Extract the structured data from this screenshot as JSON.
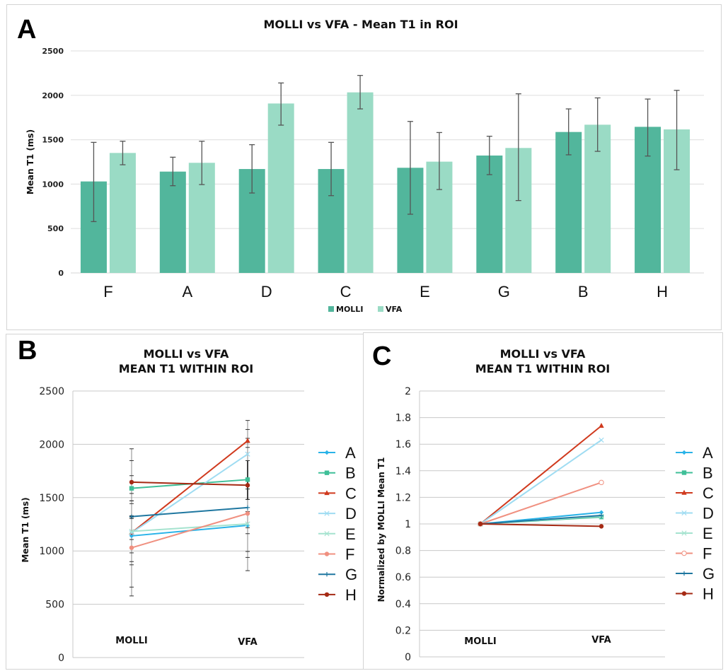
{
  "chart_data": [
    {
      "panel": "A",
      "type": "bar",
      "title": "MOLLI vs VFA - Mean T1 in ROI",
      "xlabel": "",
      "ylabel": "Mean T1 (ms)",
      "ylim": [
        0,
        2500
      ],
      "yticks": [
        0,
        500,
        1000,
        1500,
        2000,
        2500
      ],
      "grid": true,
      "legend": "bottom",
      "categories": [
        "F",
        "A",
        "D",
        "C",
        "E",
        "G",
        "B",
        "H"
      ],
      "series": [
        {
          "name": "MOLLI",
          "color": "#52b69c",
          "values": [
            1030,
            1141,
            1170,
            1170,
            1184,
            1322,
            1587,
            1645
          ],
          "error_low": [
            578,
            982,
            900,
            870,
            661,
            1107,
            1330,
            1316
          ],
          "error_high": [
            1470,
            1303,
            1444,
            1470,
            1706,
            1539,
            1847,
            1958
          ]
        },
        {
          "name": "VFA",
          "color": "#9adbc5",
          "values": [
            1351,
            1240,
            1908,
            2033,
            1253,
            1407,
            1669,
            1616
          ],
          "error_low": [
            1218,
            995,
            1664,
            1847,
            939,
            815,
            1369,
            1162
          ],
          "error_high": [
            1483,
            1483,
            2139,
            2224,
            1581,
            2017,
            1971,
            2056
          ]
        }
      ]
    },
    {
      "panel": "B",
      "type": "line",
      "title": [
        "MOLLI vs VFA",
        "MEAN T1 WITHIN ROI"
      ],
      "xlabel": "",
      "ylabel": "Mean T1 (ms)",
      "ylim": [
        0,
        2500
      ],
      "yticks": [
        0,
        500,
        1000,
        1500,
        2000,
        2500
      ],
      "grid": true,
      "legend": "right",
      "x": [
        "MOLLI",
        "VFA"
      ],
      "series": [
        {
          "name": "A",
          "color": "#29b3e8",
          "marker": "diamond",
          "values": [
            1141,
            1240
          ]
        },
        {
          "name": "B",
          "color": "#3fbf98",
          "marker": "square",
          "values": [
            1587,
            1669
          ]
        },
        {
          "name": "C",
          "color": "#d03a1e",
          "marker": "triangle",
          "values": [
            1170,
            2033
          ]
        },
        {
          "name": "D",
          "color": "#9fdcf2",
          "marker": "x",
          "values": [
            1170,
            1908
          ]
        },
        {
          "name": "E",
          "color": "#a5e3cf",
          "marker": "x",
          "values": [
            1184,
            1253
          ]
        },
        {
          "name": "F",
          "color": "#f09080",
          "marker": "circle",
          "values": [
            1030,
            1351
          ]
        },
        {
          "name": "G",
          "color": "#1f77a0",
          "marker": "plus",
          "values": [
            1322,
            1407
          ]
        },
        {
          "name": "H",
          "color": "#a52a14",
          "marker": "circle",
          "values": [
            1645,
            1616
          ]
        }
      ]
    },
    {
      "panel": "C",
      "type": "line",
      "title": [
        "MOLLI vs VFA",
        "MEAN T1 WITHIN ROI"
      ],
      "xlabel": "",
      "ylabel": "Normalized by MOLLI Mean T1",
      "ylim": [
        0,
        2
      ],
      "yticks": [
        0,
        0.2,
        0.4,
        0.6,
        0.8,
        1,
        1.2,
        1.4,
        1.6,
        1.8,
        2
      ],
      "grid": true,
      "legend": "right",
      "x": [
        "MOLLI",
        "VFA"
      ],
      "series": [
        {
          "name": "A",
          "color": "#29b3e8",
          "marker": "diamond",
          "values": [
            1,
            1.087
          ]
        },
        {
          "name": "B",
          "color": "#3fbf98",
          "marker": "square",
          "values": [
            1,
            1.052
          ]
        },
        {
          "name": "C",
          "color": "#d03a1e",
          "marker": "triangle",
          "values": [
            1,
            1.738
          ]
        },
        {
          "name": "D",
          "color": "#9fdcf2",
          "marker": "x",
          "values": [
            1,
            1.631
          ]
        },
        {
          "name": "E",
          "color": "#a5e3cf",
          "marker": "x",
          "values": [
            1,
            1.058
          ]
        },
        {
          "name": "F",
          "color": "#f09080",
          "marker": "open-circle",
          "values": [
            1,
            1.312
          ]
        },
        {
          "name": "G",
          "color": "#1f77a0",
          "marker": "plus",
          "values": [
            1,
            1.064
          ]
        },
        {
          "name": "H",
          "color": "#a52a14",
          "marker": "circle",
          "values": [
            1,
            0.982
          ]
        }
      ]
    }
  ],
  "panels": {
    "a_letter": "A",
    "b_letter": "B",
    "c_letter": "C"
  }
}
